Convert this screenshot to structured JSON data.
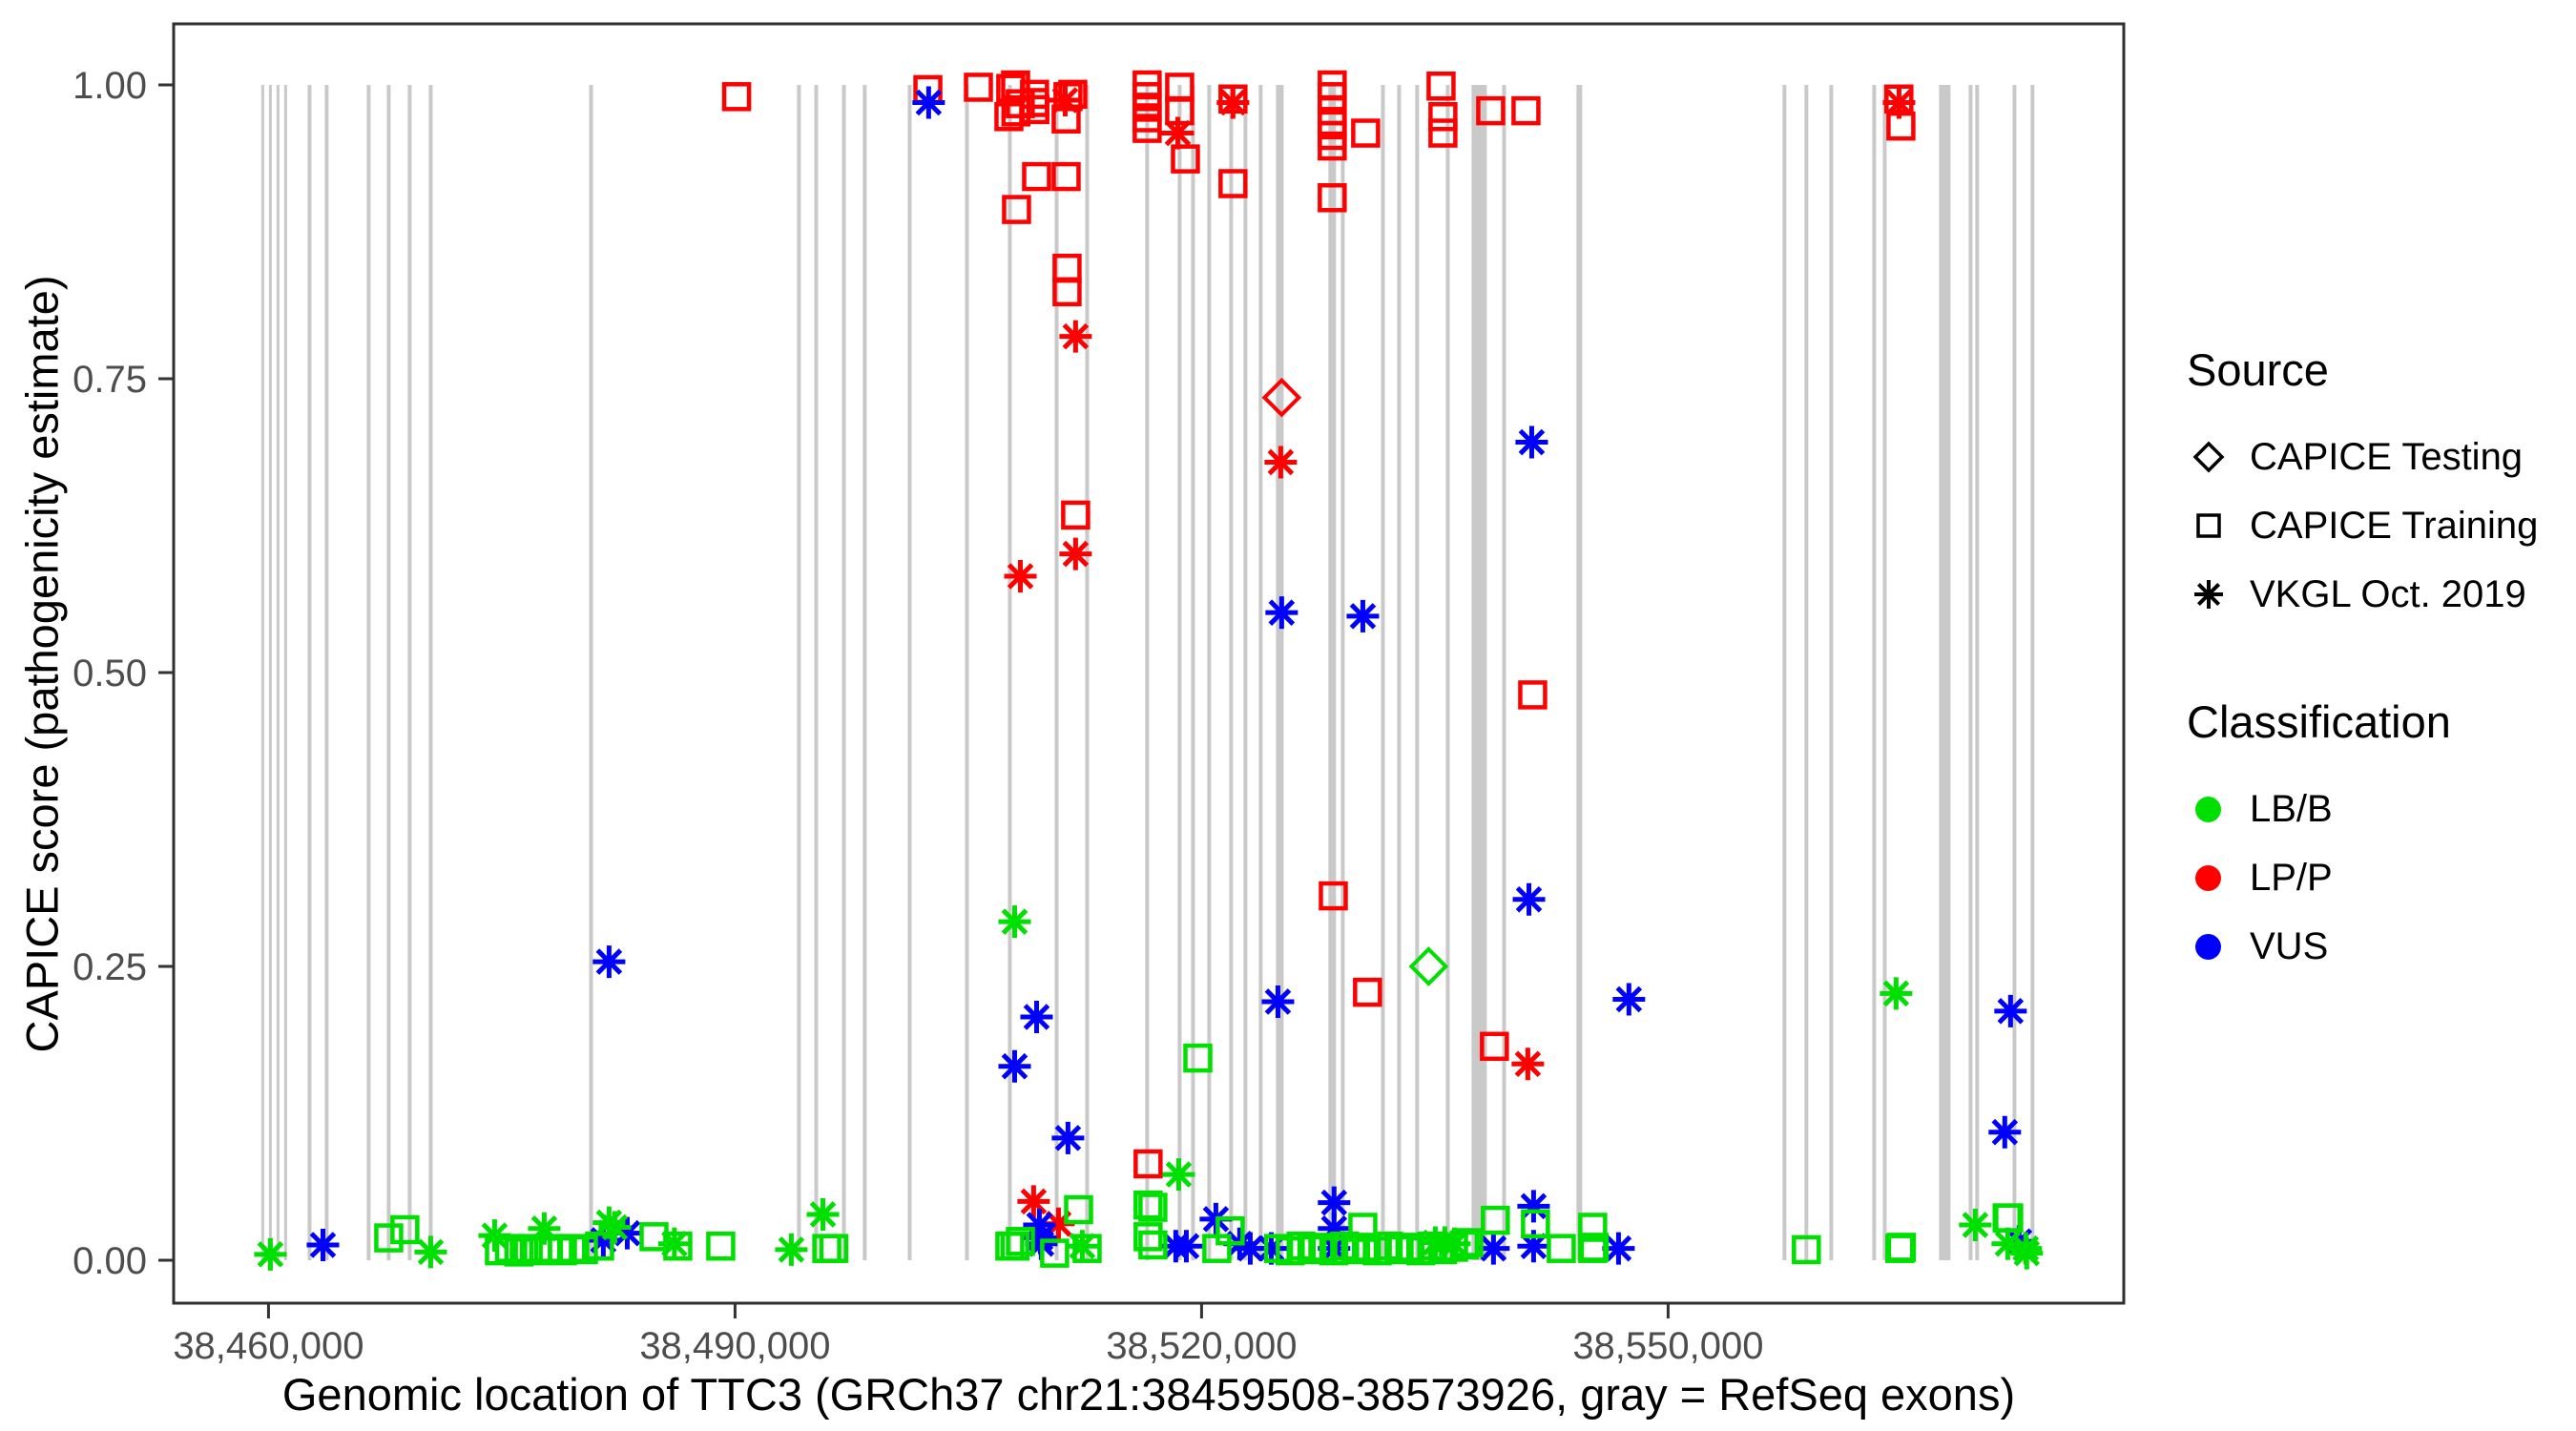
{
  "figure": {
    "background": "#FFFFFF",
    "panel_border_color": "#2F2F2F",
    "tick_color": "#333333",
    "tick_label_color": "#4D4D4D",
    "axis_title_color": "#000000",
    "exon_color": "#C9C9C9"
  },
  "legend": {
    "source_title": "Source",
    "source_items": [
      {
        "label": "CAPICE Testing",
        "marker": "diamond"
      },
      {
        "label": "CAPICE Training",
        "marker": "square"
      },
      {
        "label": "VKGL Oct. 2019",
        "marker": "asterisk"
      }
    ],
    "classification_title": "Classification",
    "classification_items": [
      {
        "label": "LB/B",
        "color": "#00E000"
      },
      {
        "label": "LP/P",
        "color": "#FF0000"
      },
      {
        "label": "VUS",
        "color": "#0000FF"
      }
    ]
  },
  "chart_data": {
    "type": "scatter",
    "title": "",
    "xlabel": "Genomic location of TTC3 (GRCh37 chr21:38459508-38573926, gray = RefSeq exons)",
    "ylabel": "CAPICE score (pathogenicity estimate)",
    "xlim": [
      38453900,
      38579300
    ],
    "ylim": [
      -0.0365,
      1.052
    ],
    "grid": false,
    "legend_position": "right",
    "x_ticks": [
      {
        "value": 38460000,
        "label": "38,460,000"
      },
      {
        "value": 38490000,
        "label": "38,490,000"
      },
      {
        "value": 38520000,
        "label": "38,520,000"
      },
      {
        "value": 38550000,
        "label": "38,550,000"
      }
    ],
    "y_ticks": [
      {
        "value": 0.0,
        "label": "0.00"
      },
      {
        "value": 0.25,
        "label": "0.25"
      },
      {
        "value": 0.5,
        "label": "0.50"
      },
      {
        "value": 0.75,
        "label": "0.75"
      },
      {
        "value": 1.0,
        "label": "1.00"
      }
    ],
    "marker_by_source": {
      "test": "diamond",
      "train": "square",
      "vkgl": "asterisk"
    },
    "source_labels": {
      "test": "CAPICE Testing",
      "train": "CAPICE Training",
      "vkgl": "VKGL Oct. 2019"
    },
    "color_by_class": {
      "LB": "#00E000",
      "LP": "#FF0000",
      "VUS": "#0000FF"
    },
    "class_labels": {
      "LB": "LB/B",
      "LP": "LP/P",
      "VUS": "VUS"
    },
    "exon_note": "gray vertical bars = RefSeq exons, spanning score 0 to 1",
    "exons": [
      {
        "pos": 38459630,
        "w": 3
      },
      {
        "pos": 38460120,
        "w": 3
      },
      {
        "pos": 38460610,
        "w": 3
      },
      {
        "pos": 38461100,
        "w": 3
      },
      {
        "pos": 38462640,
        "w": 4
      },
      {
        "pos": 38463740,
        "w": 4
      },
      {
        "pos": 38466440,
        "w": 4
      },
      {
        "pos": 38467730,
        "w": 4
      },
      {
        "pos": 38469080,
        "w": 4
      },
      {
        "pos": 38470430,
        "w": 4
      },
      {
        "pos": 38480740,
        "w": 4
      },
      {
        "pos": 38494110,
        "w": 4
      },
      {
        "pos": 38495220,
        "w": 4
      },
      {
        "pos": 38497000,
        "w": 4
      },
      {
        "pos": 38498340,
        "w": 4
      },
      {
        "pos": 38501230,
        "w": 4
      },
      {
        "pos": 38504910,
        "w": 4
      },
      {
        "pos": 38507670,
        "w": 4
      },
      {
        "pos": 38510680,
        "w": 4
      },
      {
        "pos": 38512640,
        "w": 4
      },
      {
        "pos": 38516500,
        "w": 4
      },
      {
        "pos": 38518590,
        "w": 4
      },
      {
        "pos": 38519450,
        "w": 4
      },
      {
        "pos": 38520490,
        "w": 4
      },
      {
        "pos": 38521900,
        "w": 4
      },
      {
        "pos": 38522820,
        "w": 4
      },
      {
        "pos": 38523800,
        "w": 4
      },
      {
        "pos": 38525030,
        "w": 8
      },
      {
        "pos": 38528400,
        "w": 8
      },
      {
        "pos": 38529080,
        "w": 4
      },
      {
        "pos": 38531660,
        "w": 4
      },
      {
        "pos": 38532700,
        "w": 4
      },
      {
        "pos": 38533860,
        "w": 4
      },
      {
        "pos": 38535830,
        "w": 4
      },
      {
        "pos": 38537850,
        "w": 16
      },
      {
        "pos": 38539450,
        "w": 4
      },
      {
        "pos": 38544290,
        "w": 6
      },
      {
        "pos": 38557480,
        "w": 4
      },
      {
        "pos": 38558890,
        "w": 4
      },
      {
        "pos": 38560490,
        "w": 4
      },
      {
        "pos": 38563250,
        "w": 4
      },
      {
        "pos": 38563930,
        "w": 4
      },
      {
        "pos": 38567790,
        "w": 12
      },
      {
        "pos": 38569450,
        "w": 4
      },
      {
        "pos": 38569870,
        "w": 4
      },
      {
        "pos": 38572270,
        "w": 4
      },
      {
        "pos": 38573430,
        "w": 4
      }
    ],
    "points_format": [
      "pos",
      "score",
      "source(test|train|vkgl)",
      "class(LB|LP|VUS)"
    ],
    "points": [
      [
        38490100,
        0.99,
        "train",
        "LP"
      ],
      [
        38502400,
        0.996,
        "train",
        "LP"
      ],
      [
        38505650,
        0.998,
        "train",
        "LP"
      ],
      [
        38507610,
        0.973,
        "train",
        "LP"
      ],
      [
        38507730,
        0.997,
        "train",
        "LP"
      ],
      [
        38508040,
        1.0,
        "train",
        "LP"
      ],
      [
        38508060,
        0.977,
        "train",
        "LP"
      ],
      [
        38508340,
        0.984,
        "train",
        "LP"
      ],
      [
        38508100,
        0.894,
        "train",
        "LP"
      ],
      [
        38509260,
        0.992,
        "train",
        "LP"
      ],
      [
        38509260,
        0.985,
        "train",
        "LP"
      ],
      [
        38509280,
        0.979,
        "train",
        "LP"
      ],
      [
        38509390,
        0.922,
        "train",
        "LP"
      ],
      [
        38511290,
        0.922,
        "train",
        "LP"
      ],
      [
        38511410,
        0.99,
        "train",
        "LP"
      ],
      [
        38511720,
        0.992,
        "train",
        "LP"
      ],
      [
        38511290,
        0.971,
        "train",
        "LP"
      ],
      [
        38511350,
        0.844,
        "train",
        "LP"
      ],
      [
        38511350,
        0.824,
        "train",
        "LP"
      ],
      [
        38511900,
        0.634,
        "train",
        "LP"
      ],
      [
        38516500,
        1.0,
        "train",
        "LP"
      ],
      [
        38516500,
        0.99,
        "train",
        "LP"
      ],
      [
        38516500,
        0.981,
        "train",
        "LP"
      ],
      [
        38516500,
        0.972,
        "train",
        "LP"
      ],
      [
        38516500,
        0.963,
        "train",
        "LP"
      ],
      [
        38518590,
        0.998,
        "train",
        "LP"
      ],
      [
        38518590,
        0.978,
        "train",
        "LP"
      ],
      [
        38518960,
        0.937,
        "train",
        "LP"
      ],
      [
        38522020,
        0.988,
        "train",
        "LP"
      ],
      [
        38522020,
        0.916,
        "train",
        "LP"
      ],
      [
        38528400,
        1.0,
        "train",
        "LP"
      ],
      [
        38528400,
        0.99,
        "train",
        "LP"
      ],
      [
        38528400,
        0.978,
        "train",
        "LP"
      ],
      [
        38528400,
        0.966,
        "train",
        "LP"
      ],
      [
        38528400,
        0.957,
        "train",
        "LP"
      ],
      [
        38528400,
        0.948,
        "train",
        "LP"
      ],
      [
        38528400,
        0.904,
        "train",
        "LP"
      ],
      [
        38530550,
        0.959,
        "train",
        "LP"
      ],
      [
        38535400,
        0.999,
        "train",
        "LP"
      ],
      [
        38535520,
        0.973,
        "train",
        "LP"
      ],
      [
        38535520,
        0.959,
        "train",
        "LP"
      ],
      [
        38538590,
        0.978,
        "train",
        "LP"
      ],
      [
        38540860,
        0.978,
        "train",
        "LP"
      ],
      [
        38564840,
        0.988,
        "train",
        "LP"
      ],
      [
        38564970,
        0.965,
        "train",
        "LP"
      ],
      [
        38541290,
        0.481,
        "train",
        "LP"
      ],
      [
        38528470,
        0.31,
        "train",
        "LP"
      ],
      [
        38530670,
        0.228,
        "train",
        "LP"
      ],
      [
        38538830,
        0.182,
        "train",
        "LP"
      ],
      [
        38516560,
        0.082,
        "train",
        "LP"
      ],
      [
        38511230,
        0.987,
        "vkgl",
        "LP"
      ],
      [
        38518470,
        0.959,
        "vkgl",
        "LP"
      ],
      [
        38522020,
        0.985,
        "vkgl",
        "LP"
      ],
      [
        38564850,
        0.985,
        "vkgl",
        "LP"
      ],
      [
        38511900,
        0.786,
        "vkgl",
        "LP"
      ],
      [
        38511900,
        0.601,
        "vkgl",
        "LP"
      ],
      [
        38508350,
        0.582,
        "vkgl",
        "LP"
      ],
      [
        38525090,
        0.679,
        "vkgl",
        "LP"
      ],
      [
        38540980,
        0.167,
        "vkgl",
        "LP"
      ],
      [
        38509200,
        0.05,
        "vkgl",
        "LP"
      ],
      [
        38510800,
        0.031,
        "vkgl",
        "LP"
      ],
      [
        38525150,
        0.734,
        "test",
        "LP"
      ],
      [
        38534600,
        0.25,
        "test",
        "LB"
      ],
      [
        38502450,
        0.985,
        "vkgl",
        "VUS"
      ],
      [
        38541230,
        0.696,
        "vkgl",
        "VUS"
      ],
      [
        38525150,
        0.551,
        "vkgl",
        "VUS"
      ],
      [
        38530370,
        0.548,
        "vkgl",
        "VUS"
      ],
      [
        38541050,
        0.307,
        "vkgl",
        "VUS"
      ],
      [
        38547480,
        0.222,
        "vkgl",
        "VUS"
      ],
      [
        38524910,
        0.22,
        "vkgl",
        "VUS"
      ],
      [
        38481900,
        0.254,
        "vkgl",
        "VUS"
      ],
      [
        38509390,
        0.207,
        "vkgl",
        "VUS"
      ],
      [
        38507980,
        0.165,
        "vkgl",
        "VUS"
      ],
      [
        38511410,
        0.104,
        "vkgl",
        "VUS"
      ],
      [
        38572020,
        0.212,
        "vkgl",
        "VUS"
      ],
      [
        38571650,
        0.109,
        "vkgl",
        "VUS"
      ],
      [
        38463500,
        0.013,
        "vkgl",
        "VUS"
      ],
      [
        38481530,
        0.017,
        "vkgl",
        "VUS"
      ],
      [
        38483070,
        0.023,
        "vkgl",
        "VUS"
      ],
      [
        38509570,
        0.03,
        "vkgl",
        "VUS"
      ],
      [
        38509630,
        0.019,
        "vkgl",
        "VUS"
      ],
      [
        38509690,
        0.014,
        "vkgl",
        "VUS"
      ],
      [
        38518340,
        0.012,
        "vkgl",
        "VUS"
      ],
      [
        38519020,
        0.012,
        "vkgl",
        "VUS"
      ],
      [
        38520920,
        0.035,
        "vkgl",
        "VUS"
      ],
      [
        38522450,
        0.014,
        "vkgl",
        "VUS"
      ],
      [
        38523130,
        0.01,
        "vkgl",
        "VUS"
      ],
      [
        38524480,
        0.01,
        "vkgl",
        "VUS"
      ],
      [
        38528520,
        0.049,
        "vkgl",
        "VUS"
      ],
      [
        38528520,
        0.027,
        "vkgl",
        "VUS"
      ],
      [
        38528520,
        0.01,
        "vkgl",
        "VUS"
      ],
      [
        38538770,
        0.01,
        "vkgl",
        "VUS"
      ],
      [
        38541350,
        0.046,
        "vkgl",
        "VUS"
      ],
      [
        38541350,
        0.012,
        "vkgl",
        "VUS"
      ],
      [
        38546810,
        0.01,
        "vkgl",
        "VUS"
      ],
      [
        38572570,
        0.016,
        "vkgl",
        "VUS"
      ],
      [
        38460120,
        0.005,
        "vkgl",
        "LB"
      ],
      [
        38470430,
        0.007,
        "vkgl",
        "LB"
      ],
      [
        38474540,
        0.021,
        "vkgl",
        "LB"
      ],
      [
        38477730,
        0.027,
        "vkgl",
        "LB"
      ],
      [
        38482270,
        0.028,
        "vkgl",
        "LB"
      ],
      [
        38481900,
        0.032,
        "vkgl",
        "LB"
      ],
      [
        38486100,
        0.014,
        "vkgl",
        "LB"
      ],
      [
        38493620,
        0.009,
        "vkgl",
        "LB"
      ],
      [
        38495650,
        0.039,
        "vkgl",
        "LB"
      ],
      [
        38507980,
        0.288,
        "vkgl",
        "LB"
      ],
      [
        38518530,
        0.073,
        "vkgl",
        "LB"
      ],
      [
        38512330,
        0.012,
        "vkgl",
        "LB"
      ],
      [
        38535030,
        0.015,
        "vkgl",
        "LB"
      ],
      [
        38535640,
        0.015,
        "vkgl",
        "LB"
      ],
      [
        38536260,
        0.014,
        "vkgl",
        "LB"
      ],
      [
        38564660,
        0.227,
        "vkgl",
        "LB"
      ],
      [
        38569750,
        0.03,
        "vkgl",
        "LB"
      ],
      [
        38571840,
        0.014,
        "vkgl",
        "LB"
      ],
      [
        38573000,
        0.01,
        "vkgl",
        "LB"
      ],
      [
        38573060,
        0.006,
        "vkgl",
        "LB"
      ],
      [
        38467730,
        0.019,
        "train",
        "LB"
      ],
      [
        38468770,
        0.026,
        "train",
        "LB"
      ],
      [
        38474850,
        0.008,
        "train",
        "LB"
      ],
      [
        38475500,
        0.01,
        "train",
        "LB"
      ],
      [
        38476100,
        0.007,
        "train",
        "LB"
      ],
      [
        38476700,
        0.01,
        "train",
        "LB"
      ],
      [
        38477300,
        0.008,
        "train",
        "LB"
      ],
      [
        38478000,
        0.01,
        "train",
        "LB"
      ],
      [
        38478900,
        0.008,
        "train",
        "LB"
      ],
      [
        38479500,
        0.01,
        "train",
        "LB"
      ],
      [
        38480250,
        0.009,
        "train",
        "LB"
      ],
      [
        38481290,
        0.012,
        "train",
        "LB"
      ],
      [
        38484790,
        0.02,
        "train",
        "LB"
      ],
      [
        38486320,
        0.012,
        "train",
        "LB"
      ],
      [
        38489080,
        0.012,
        "train",
        "LB"
      ],
      [
        38495900,
        0.01,
        "train",
        "LB"
      ],
      [
        38496350,
        0.01,
        "train",
        "LB"
      ],
      [
        38507670,
        0.012,
        "train",
        "LB"
      ],
      [
        38508000,
        0.012,
        "train",
        "LB"
      ],
      [
        38508350,
        0.016,
        "train",
        "LB"
      ],
      [
        38510550,
        0.006,
        "train",
        "LB"
      ],
      [
        38512090,
        0.043,
        "train",
        "LB"
      ],
      [
        38512640,
        0.01,
        "train",
        "LB"
      ],
      [
        38516560,
        0.047,
        "train",
        "LB"
      ],
      [
        38516560,
        0.02,
        "train",
        "LB"
      ],
      [
        38516870,
        0.045,
        "train",
        "LB"
      ],
      [
        38516870,
        0.013,
        "train",
        "LB"
      ],
      [
        38519760,
        0.172,
        "train",
        "LB"
      ],
      [
        38520980,
        0.01,
        "train",
        "LB"
      ],
      [
        38521840,
        0.025,
        "train",
        "LB"
      ],
      [
        38524950,
        0.01,
        "train",
        "LB"
      ],
      [
        38525700,
        0.008,
        "train",
        "LB"
      ],
      [
        38526400,
        0.012,
        "train",
        "LB"
      ],
      [
        38527100,
        0.009,
        "train",
        "LB"
      ],
      [
        38527800,
        0.011,
        "train",
        "LB"
      ],
      [
        38528500,
        0.008,
        "train",
        "LB"
      ],
      [
        38529200,
        0.012,
        "train",
        "LB"
      ],
      [
        38529900,
        0.009,
        "train",
        "LB"
      ],
      [
        38530600,
        0.011,
        "train",
        "LB"
      ],
      [
        38531300,
        0.008,
        "train",
        "LB"
      ],
      [
        38532000,
        0.012,
        "train",
        "LB"
      ],
      [
        38532700,
        0.009,
        "train",
        "LB"
      ],
      [
        38533400,
        0.011,
        "train",
        "LB"
      ],
      [
        38534100,
        0.008,
        "train",
        "LB"
      ],
      [
        38534800,
        0.012,
        "train",
        "LB"
      ],
      [
        38535500,
        0.009,
        "train",
        "LB"
      ],
      [
        38536200,
        0.011,
        "train",
        "LB"
      ],
      [
        38536900,
        0.013,
        "train",
        "LB"
      ],
      [
        38530370,
        0.028,
        "train",
        "LB"
      ],
      [
        38537180,
        0.015,
        "train",
        "LB"
      ],
      [
        38538890,
        0.034,
        "train",
        "LB"
      ],
      [
        38541470,
        0.031,
        "train",
        "LB"
      ],
      [
        38543130,
        0.01,
        "train",
        "LB"
      ],
      [
        38545150,
        0.028,
        "train",
        "LB"
      ],
      [
        38545150,
        0.01,
        "train",
        "LB"
      ],
      [
        38545250,
        0.011,
        "train",
        "LB"
      ],
      [
        38558890,
        0.009,
        "train",
        "LB"
      ],
      [
        38564900,
        0.01,
        "train",
        "LB"
      ],
      [
        38565000,
        0.011,
        "train",
        "LB"
      ],
      [
        38571800,
        0.036,
        "train",
        "LB"
      ],
      [
        38571900,
        0.036,
        "train",
        "LB"
      ]
    ]
  }
}
